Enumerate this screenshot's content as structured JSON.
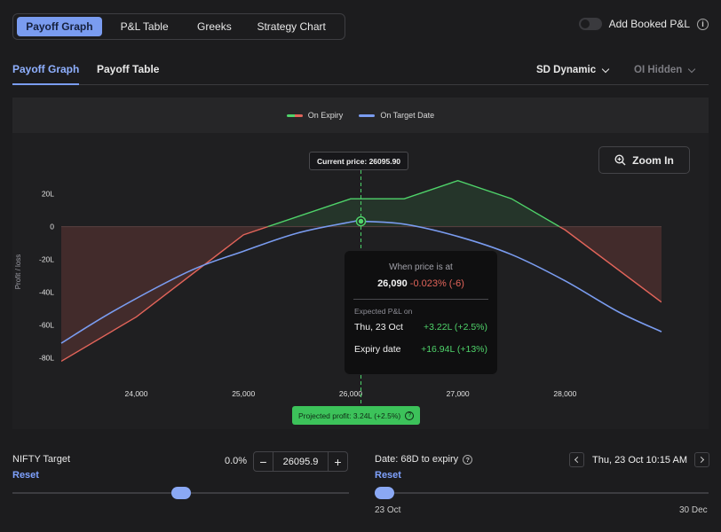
{
  "top_tabs": [
    {
      "label": "Payoff Graph",
      "active": true
    },
    {
      "label": "P&L Table",
      "active": false
    },
    {
      "label": "Greeks",
      "active": false
    },
    {
      "label": "Strategy Chart",
      "active": false
    }
  ],
  "booked_pnl": {
    "label": "Add Booked P&L",
    "enabled": false
  },
  "sub_tabs": [
    {
      "label": "Payoff Graph",
      "active": true
    },
    {
      "label": "Payoff Table",
      "active": false
    }
  ],
  "dropdowns": {
    "sd": "SD Dynamic",
    "oi": "OI Hidden"
  },
  "legend": {
    "expiry": "On Expiry",
    "target": "On Target Date"
  },
  "zoom_label": "Zoom In",
  "current_price_label": "Current price: 26095.90",
  "tooltip": {
    "header": "When price is at",
    "price": "26,090",
    "change": "-0.023% (-6)",
    "expected_label": "Expected P&L on",
    "rows": [
      {
        "k": "Thu, 23 Oct",
        "v": "+3.22L (+2.5%)"
      },
      {
        "k": "Expiry date",
        "v": "+16.94L (+13%)"
      }
    ]
  },
  "projected": {
    "label": "Projected profit: 3.24L (+2.5%)"
  },
  "chart_data": {
    "type": "line",
    "ylabel": "Profit / loss",
    "x_ticks": [
      "24,000",
      "25,000",
      "26,000",
      "27,000",
      "28,000"
    ],
    "y_ticks": [
      "20L",
      "0",
      "-20L",
      "-40L",
      "-60L",
      "-80L"
    ],
    "xlim": [
      23300,
      28900
    ],
    "ylim": [
      -85,
      30
    ],
    "current_price": 26095.9,
    "series": [
      {
        "name": "On Expiry",
        "x": [
          23300,
          24000,
          25000,
          26000,
          26500,
          27000,
          27500,
          28000,
          28900
        ],
        "y": [
          -82,
          -55,
          -5,
          16.94,
          16.94,
          28,
          17,
          -2,
          -46
        ]
      },
      {
        "name": "On Target Date",
        "x": [
          23300,
          23800,
          24500,
          25000,
          25500,
          26000,
          26100,
          26500,
          27000,
          27500,
          28000,
          28500,
          28900
        ],
        "y": [
          -71,
          -51,
          -27,
          -15,
          -4,
          2.8,
          3.22,
          1.5,
          -6,
          -17,
          -33,
          -52,
          -64
        ]
      }
    ],
    "colors": {
      "profit": "#4fd36a",
      "loss": "#e2645a",
      "target": "#7a9cf0"
    }
  },
  "target": {
    "label": "NIFTY Target",
    "reset": "Reset",
    "pct": "0.0%",
    "value": "26095.9",
    "level": 0.5
  },
  "date": {
    "label": "Date: 68D to expiry",
    "reset": "Reset",
    "datetime": "Thu, 23 Oct 10:15 AM",
    "start": "23 Oct",
    "end": "30 Dec",
    "level": 0.0
  }
}
